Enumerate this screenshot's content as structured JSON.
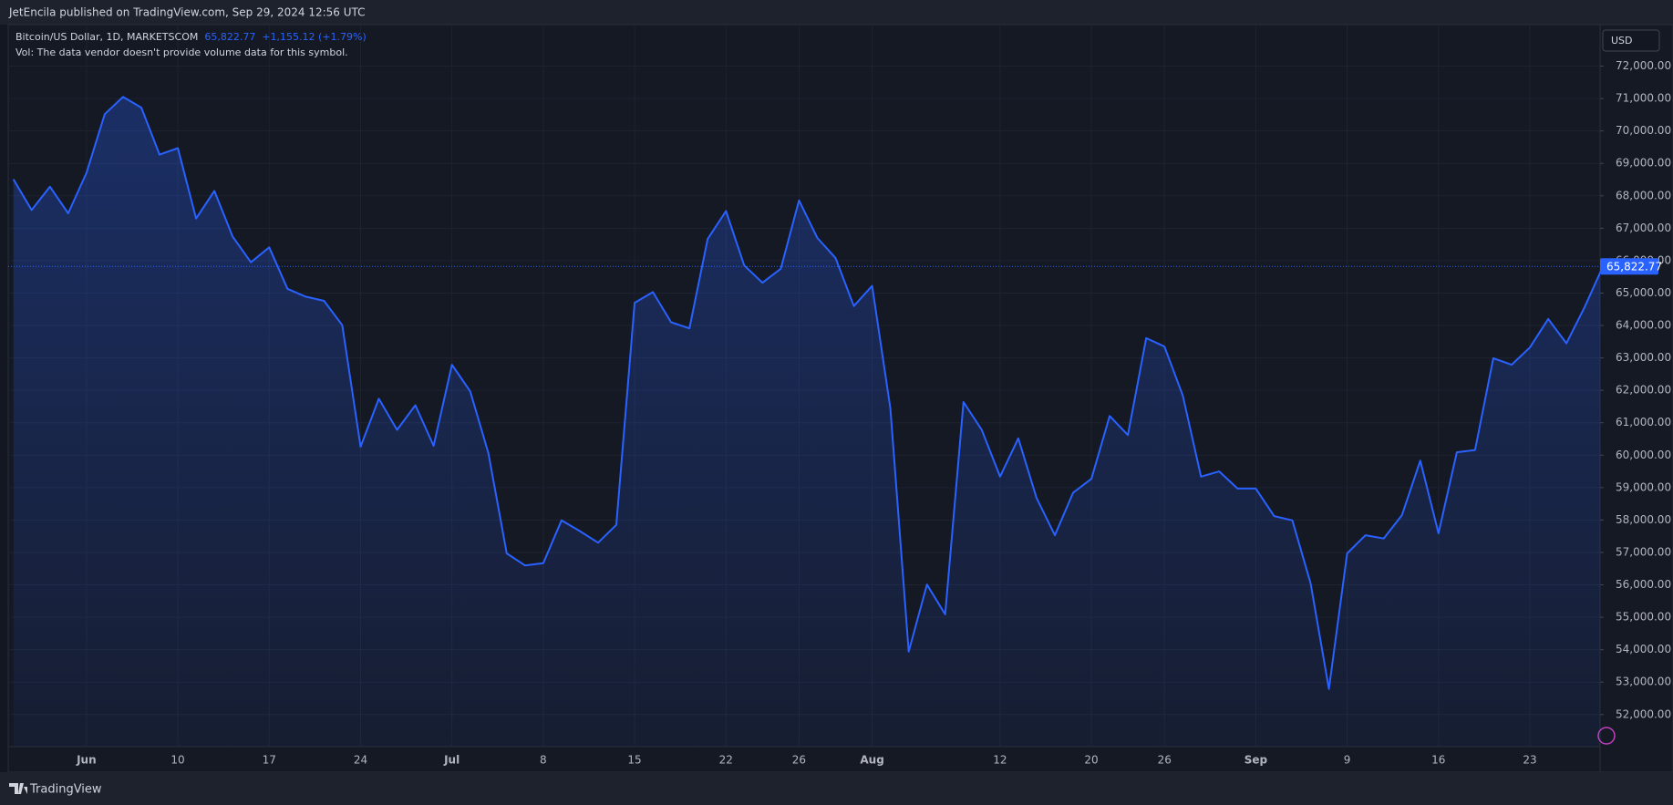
{
  "header": {
    "text": "JetEncila published on TradingView.com, Sep 29, 2024 12:56 UTC"
  },
  "footer": {
    "brand": "TradingView"
  },
  "chart_data": {
    "type": "area",
    "title": "Bitcoin/US Dollar, 1D, MARKETSCOM",
    "price_label": "65,822.77",
    "change": "+1,155.12 (+1.79%)",
    "note": "Vol: The data vendor doesn't provide volume data for this symbol.",
    "currency": "USD",
    "color": "#2962ff",
    "grid": true,
    "categories": [
      null,
      null,
      null,
      null,
      "Jun",
      null,
      null,
      null,
      null,
      "10",
      null,
      null,
      null,
      null,
      "17",
      null,
      null,
      null,
      null,
      "24",
      null,
      null,
      null,
      null,
      "Jul",
      null,
      null,
      null,
      null,
      "8",
      null,
      null,
      null,
      null,
      "15",
      null,
      null,
      null,
      null,
      "22",
      null,
      null,
      null,
      "26",
      null,
      null,
      null,
      "Aug",
      null,
      null,
      null,
      null,
      null,
      null,
      "12",
      null,
      null,
      null,
      null,
      "20",
      null,
      null,
      null,
      "26",
      null,
      null,
      null,
      null,
      "Sep",
      null,
      null,
      null,
      null,
      "9",
      null,
      null,
      null,
      null,
      "16",
      null,
      null,
      null,
      null,
      "23",
      null,
      null,
      null,
      null
    ],
    "values": [
      68510,
      67560,
      68280,
      67460,
      68710,
      70520,
      71050,
      70720,
      69270,
      69470,
      67300,
      68150,
      66740,
      65950,
      66410,
      65130,
      64890,
      64760,
      64010,
      60260,
      61740,
      60780,
      61540,
      60290,
      62790,
      61970,
      60060,
      56970,
      56600,
      56670,
      57990,
      57660,
      57300,
      57850,
      64700,
      65030,
      64100,
      63910,
      66670,
      67530,
      65850,
      65320,
      65750,
      67860,
      66700,
      66080,
      64600,
      65220,
      61440,
      53940,
      56010,
      55090,
      61640,
      60780,
      59340,
      60520,
      58680,
      57530,
      58840,
      59270,
      61210,
      60620,
      63610,
      63350,
      61840,
      59340,
      59500,
      58970,
      58970,
      58120,
      57990,
      56050,
      52790,
      56970,
      57530,
      57430,
      58150,
      59830,
      57590,
      60090,
      60160,
      62990,
      62790,
      63320,
      64200,
      63450,
      64570,
      65822.77
    ],
    "ylim": [
      51010,
      73280
    ],
    "yticks": [
      {
        "value": 52000,
        "label": "52,000.00"
      },
      {
        "value": 53000,
        "label": "53,000.00"
      },
      {
        "value": 54000,
        "label": "54,000.00"
      },
      {
        "value": 55000,
        "label": "55,000.00"
      },
      {
        "value": 56000,
        "label": "56,000.00"
      },
      {
        "value": 57000,
        "label": "57,000.00"
      },
      {
        "value": 58000,
        "label": "58,000.00"
      },
      {
        "value": 59000,
        "label": "59,000.00"
      },
      {
        "value": 60000,
        "label": "60,000.00"
      },
      {
        "value": 61000,
        "label": "61,000.00"
      },
      {
        "value": 62000,
        "label": "62,000.00"
      },
      {
        "value": 63000,
        "label": "63,000.00"
      },
      {
        "value": 64000,
        "label": "64,000.00"
      },
      {
        "value": 65000,
        "label": "65,000.00"
      },
      {
        "value": 66000,
        "label": "66,000.00"
      },
      {
        "value": 67000,
        "label": "67,000.00"
      },
      {
        "value": 68000,
        "label": "68,000.00"
      },
      {
        "value": 69000,
        "label": "69,000.00"
      },
      {
        "value": 70000,
        "label": "70,000.00"
      },
      {
        "value": 71000,
        "label": "71,000.00"
      },
      {
        "value": 72000,
        "label": "72,000.00"
      }
    ]
  }
}
